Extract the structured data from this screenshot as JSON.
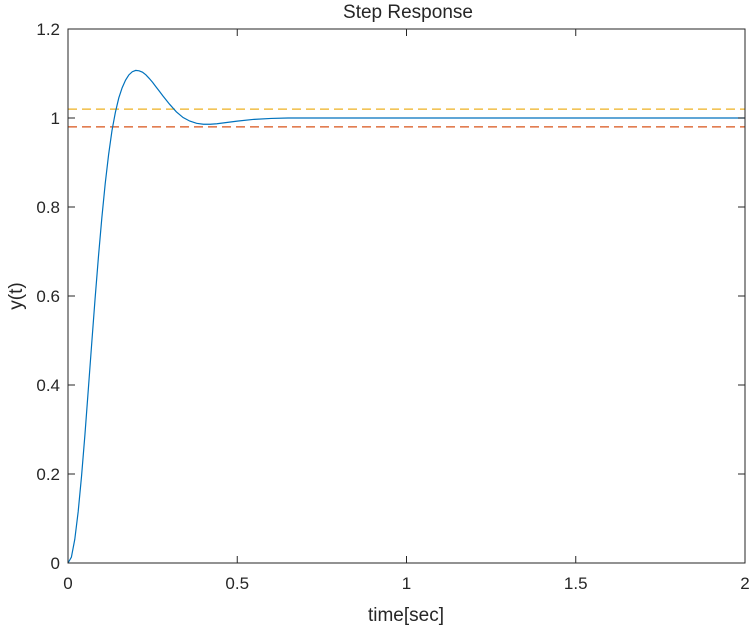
{
  "chart_data": {
    "type": "line",
    "title": "Step Response",
    "xlabel": "time[sec]",
    "ylabel": "y(t)",
    "xlim": [
      0,
      2
    ],
    "ylim": [
      0,
      1.2
    ],
    "x_ticks": [
      0,
      0.5,
      1,
      1.5,
      2
    ],
    "x_tick_labels": [
      "0",
      "0.5",
      "1",
      "1.5",
      "2"
    ],
    "y_ticks": [
      0,
      0.2,
      0.4,
      0.6,
      0.8,
      1,
      1.2
    ],
    "y_tick_labels": [
      "0",
      "0.2",
      "0.4",
      "0.6",
      "0.8",
      "1",
      "1.2"
    ],
    "grid": false,
    "series": [
      {
        "color": "#0072BD",
        "style": "solid",
        "x": [
          0,
          0.01,
          0.02,
          0.03,
          0.04,
          0.05,
          0.06,
          0.07,
          0.08,
          0.09,
          0.1,
          0.11,
          0.12,
          0.13,
          0.14,
          0.15,
          0.16,
          0.17,
          0.18,
          0.19,
          0.2,
          0.21,
          0.22,
          0.23,
          0.24,
          0.25,
          0.26,
          0.27,
          0.28,
          0.3,
          0.32,
          0.34,
          0.36,
          0.38,
          0.4,
          0.42,
          0.44,
          0.46,
          0.48,
          0.5,
          0.55,
          0.6,
          0.65,
          0.7,
          0.75,
          0.8,
          0.9,
          1.0,
          1.2,
          1.4,
          1.6,
          1.8,
          2.0
        ],
        "y": [
          0,
          0.013,
          0.053,
          0.115,
          0.195,
          0.288,
          0.39,
          0.493,
          0.594,
          0.689,
          0.776,
          0.853,
          0.918,
          0.972,
          1.013,
          1.045,
          1.068,
          1.085,
          1.097,
          1.104,
          1.107,
          1.106,
          1.103,
          1.097,
          1.089,
          1.08,
          1.07,
          1.06,
          1.05,
          1.031,
          1.014,
          1.001,
          0.993,
          0.988,
          0.986,
          0.986,
          0.987,
          0.989,
          0.991,
          0.993,
          0.997,
          0.999,
          1.0,
          1.0,
          1.0,
          1.0,
          1.0,
          1.0,
          1.0,
          1.0,
          1.0,
          1.0,
          1.0
        ]
      },
      {
        "color": "#EDB120",
        "style": "dashed",
        "x": [
          0,
          2
        ],
        "y": [
          1.02,
          1.02
        ]
      },
      {
        "color": "#D95319",
        "style": "dashed",
        "x": [
          0,
          2
        ],
        "y": [
          0.98,
          0.98
        ]
      }
    ]
  }
}
